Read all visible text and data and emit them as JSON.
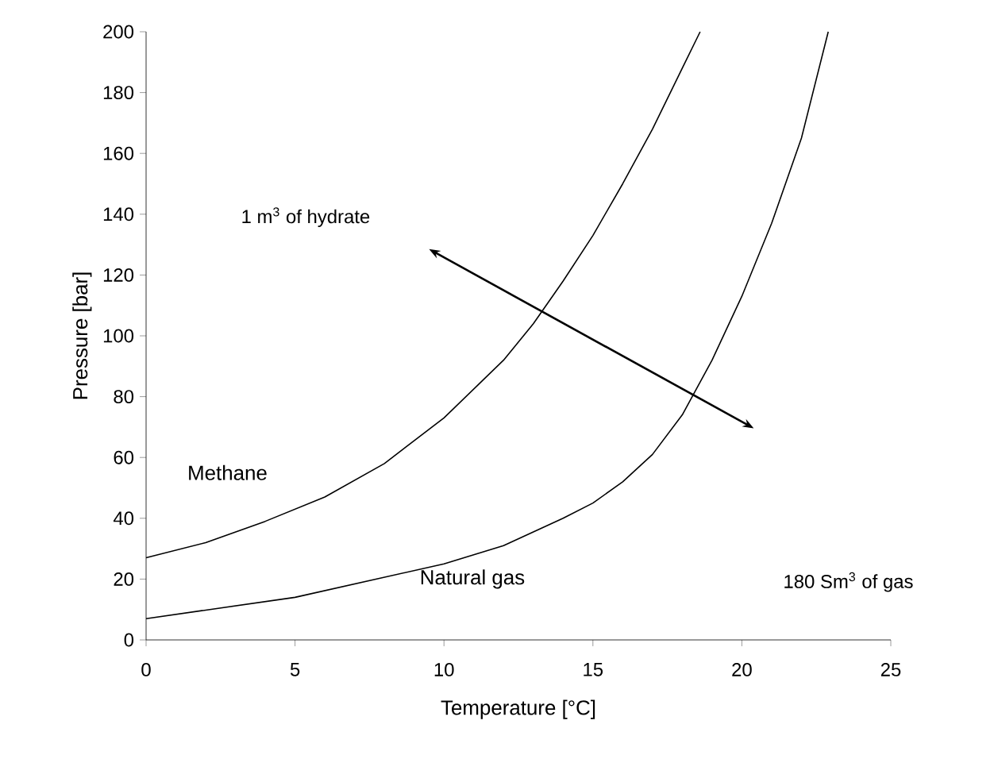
{
  "chart_data": {
    "type": "line",
    "xlabel": "Temperature [°C]",
    "ylabel": "Pressure [bar]",
    "xlim": [
      0,
      25
    ],
    "xticks": [
      0,
      5,
      10,
      15,
      20,
      25
    ],
    "ylim": [
      0,
      200
    ],
    "yticks": [
      0,
      20,
      40,
      60,
      80,
      100,
      120,
      140,
      160,
      180,
      200
    ],
    "grid": false,
    "marker": "none",
    "line_style": "solid",
    "series": [
      {
        "name": "Methane",
        "color": "#000000",
        "x": [
          0,
          2,
          4,
          6,
          8,
          10,
          12,
          13,
          14,
          15,
          16,
          17,
          18,
          18.6
        ],
        "values": [
          27,
          32,
          39,
          47,
          58,
          73,
          92,
          104,
          118,
          133,
          150,
          168,
          188,
          200
        ]
      },
      {
        "name": "Natural gas",
        "color": "#000000",
        "x": [
          0,
          5,
          10,
          12,
          14,
          15,
          16,
          17,
          18,
          19,
          20,
          21,
          22,
          22.9
        ],
        "values": [
          7,
          14,
          25,
          31,
          40,
          45,
          52,
          61,
          74,
          92,
          113,
          137,
          165,
          200
        ]
      }
    ],
    "annotations": [
      "1 m$^{3}$ of hydrate",
      "180 Sm$^{3}$ of gas"
    ]
  }
}
